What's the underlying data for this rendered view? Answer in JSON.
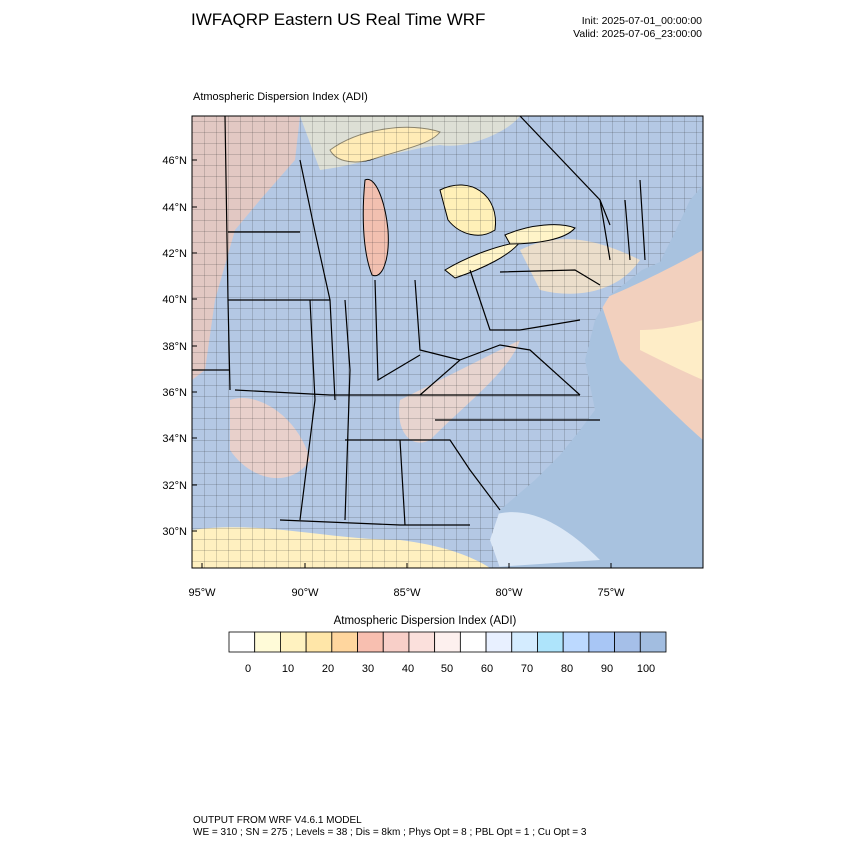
{
  "header": {
    "title": "IWFAQRP Eastern US Real Time WRF",
    "init": "Init: 2025-07-01_00:00:00",
    "valid": "Valid: 2025-07-06_23:00:00"
  },
  "plot": {
    "title": "Atmospheric Dispersion Index   (ADI)",
    "lat_ticks": [
      "30°N",
      "32°N",
      "34°N",
      "36°N",
      "38°N",
      "40°N",
      "42°N",
      "44°N",
      "46°N"
    ],
    "lon_ticks": [
      "95°W",
      "90°W",
      "85°W",
      "80°W",
      "75°W"
    ]
  },
  "legend": {
    "title": "Atmospheric Dispersion Index  (ADI)",
    "labels": [
      "0",
      "10",
      "20",
      "30",
      "40",
      "50",
      "60",
      "70",
      "80",
      "90",
      "100"
    ],
    "colors": [
      "#ffffff",
      "#fffbd8",
      "#fff2c0",
      "#ffe6a8",
      "#ffd69e",
      "#f8bfb0",
      "#f8cfc8",
      "#fbe0dc",
      "#fdf0ee",
      "#ffffff",
      "#e8f0ff",
      "#d4ecff",
      "#aee4fb",
      "#bcd9ff",
      "#a8c6f5",
      "#a5bfe8",
      "#a2bde0"
    ]
  },
  "footer": {
    "line1": "OUTPUT FROM WRF V4.6.1 MODEL",
    "line2": "WE = 310 ; SN = 275 ; Levels = 38 ; Dis = 8km ; Phys Opt = 8 ; PBL Opt = 1 ; Cu Opt = 3"
  }
}
